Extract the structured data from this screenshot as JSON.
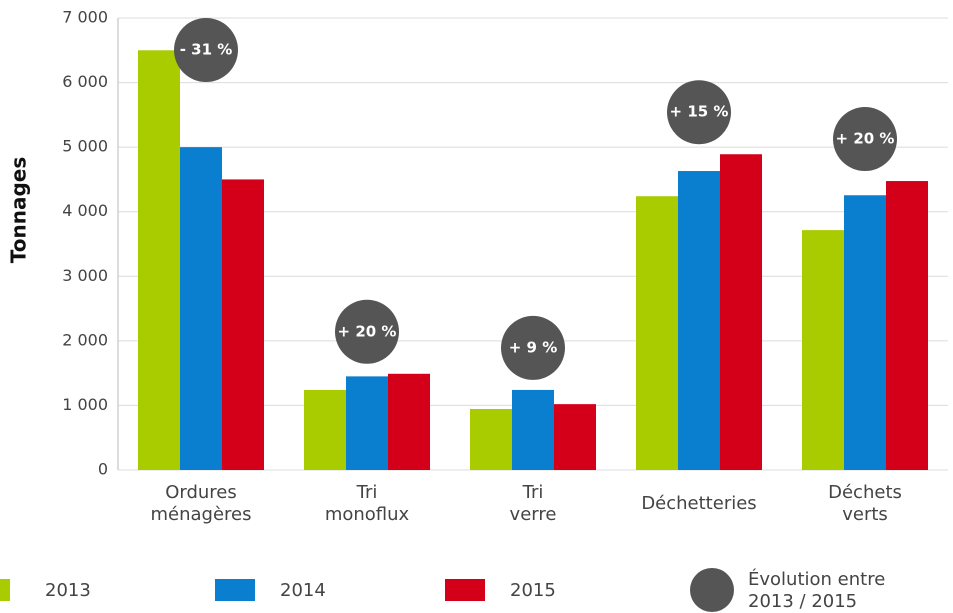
{
  "chart_data": {
    "type": "bar",
    "y_label": "Tonnages",
    "categories": [
      "Ordures\nménagères",
      "Tri\nmonoflux",
      "Tri\nverre",
      "Déchetteries",
      "Déchets\nverts"
    ],
    "series": [
      {
        "name": "2013",
        "color": "#a8cc00",
        "values": [
          6500,
          1240,
          945,
          4240,
          3715
        ]
      },
      {
        "name": "2014",
        "color": "#0a7fd0",
        "values": [
          5000,
          1450,
          1240,
          4630,
          4255
        ]
      },
      {
        "name": "2015",
        "color": "#d4001a",
        "values": [
          4500,
          1490,
          1020,
          4890,
          4475
        ]
      }
    ],
    "annotations": [
      "- 31 %",
      "+ 20 %",
      "+ 9 %",
      "+ 15 %",
      "+ 20 %"
    ],
    "annotation_color": "#555555",
    "annotation_legend": [
      "Évolution entre",
      "2013 / 2015"
    ],
    "ylim": [
      0,
      7000
    ],
    "yticks": [
      0,
      {
        "value": 1000,
        "label": "1 000"
      },
      {
        "value": 2000,
        "label": "2 000"
      },
      {
        "value": 3000,
        "label": "3 000"
      },
      {
        "value": 4000,
        "label": "4 000"
      },
      {
        "value": 5000,
        "label": "5 000"
      },
      {
        "value": 6000,
        "label": "6 000"
      },
      {
        "value": 7000,
        "label": "7 000"
      }
    ],
    "grid": true
  }
}
